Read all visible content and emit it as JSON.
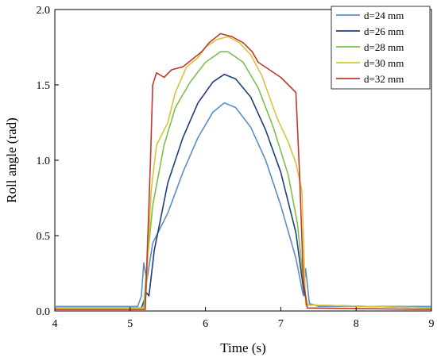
{
  "chart_data": {
    "type": "line",
    "xlabel": "Time (s)",
    "ylabel": "Roll angle (rad)",
    "xlim": [
      4,
      9
    ],
    "ylim": [
      0,
      2.0
    ],
    "x_ticks": [
      "4",
      "5",
      "6",
      "7",
      "8",
      "9"
    ],
    "y_ticks": [
      "0.0",
      "0.5",
      "1.0",
      "1.5",
      "2.0"
    ],
    "legend_position": "top-right",
    "grid": false,
    "series": [
      {
        "name": "d=24 mm",
        "color": "#5b8fc7",
        "points": [
          [
            4.0,
            0.03
          ],
          [
            5.1,
            0.03
          ],
          [
            5.15,
            0.1
          ],
          [
            5.18,
            0.32
          ],
          [
            5.22,
            0.2
          ],
          [
            5.3,
            0.45
          ],
          [
            5.5,
            0.65
          ],
          [
            5.7,
            0.92
          ],
          [
            5.9,
            1.15
          ],
          [
            6.1,
            1.32
          ],
          [
            6.25,
            1.38
          ],
          [
            6.4,
            1.35
          ],
          [
            6.6,
            1.22
          ],
          [
            6.8,
            1.0
          ],
          [
            7.0,
            0.7
          ],
          [
            7.2,
            0.35
          ],
          [
            7.3,
            0.1
          ],
          [
            7.33,
            0.28
          ],
          [
            7.38,
            0.05
          ],
          [
            7.5,
            0.03
          ],
          [
            9.0,
            0.03
          ]
        ]
      },
      {
        "name": "d=26 mm",
        "color": "#1f3e7a",
        "points": [
          [
            4.0,
            0.02
          ],
          [
            5.15,
            0.02
          ],
          [
            5.22,
            0.12
          ],
          [
            5.25,
            0.1
          ],
          [
            5.32,
            0.4
          ],
          [
            5.5,
            0.85
          ],
          [
            5.7,
            1.15
          ],
          [
            5.9,
            1.38
          ],
          [
            6.1,
            1.52
          ],
          [
            6.25,
            1.57
          ],
          [
            6.4,
            1.54
          ],
          [
            6.6,
            1.42
          ],
          [
            6.8,
            1.2
          ],
          [
            7.0,
            0.92
          ],
          [
            7.2,
            0.52
          ],
          [
            7.3,
            0.15
          ],
          [
            7.35,
            0.04
          ],
          [
            9.0,
            0.02
          ]
        ]
      },
      {
        "name": "d=28 mm",
        "color": "#7cc04a",
        "points": [
          [
            4.0,
            0.02
          ],
          [
            5.18,
            0.02
          ],
          [
            5.22,
            0.3
          ],
          [
            5.3,
            0.7
          ],
          [
            5.45,
            1.1
          ],
          [
            5.6,
            1.35
          ],
          [
            5.8,
            1.52
          ],
          [
            6.0,
            1.65
          ],
          [
            6.2,
            1.72
          ],
          [
            6.3,
            1.72
          ],
          [
            6.5,
            1.65
          ],
          [
            6.7,
            1.48
          ],
          [
            6.9,
            1.22
          ],
          [
            7.1,
            0.9
          ],
          [
            7.22,
            0.58
          ],
          [
            7.3,
            0.2
          ],
          [
            7.35,
            0.04
          ],
          [
            9.0,
            0.02
          ]
        ]
      },
      {
        "name": "d=30 mm",
        "color": "#d8c43a",
        "points": [
          [
            4.0,
            0.02
          ],
          [
            5.2,
            0.02
          ],
          [
            5.28,
            0.8
          ],
          [
            5.35,
            1.1
          ],
          [
            5.5,
            1.25
          ],
          [
            5.6,
            1.45
          ],
          [
            5.75,
            1.62
          ],
          [
            5.9,
            1.68
          ],
          [
            6.0,
            1.75
          ],
          [
            6.15,
            1.8
          ],
          [
            6.3,
            1.82
          ],
          [
            6.45,
            1.78
          ],
          [
            6.6,
            1.7
          ],
          [
            6.75,
            1.56
          ],
          [
            6.95,
            1.28
          ],
          [
            7.1,
            1.12
          ],
          [
            7.2,
            0.98
          ],
          [
            7.28,
            0.8
          ],
          [
            7.33,
            0.04
          ],
          [
            9.0,
            0.02
          ]
        ]
      },
      {
        "name": "d=32 mm",
        "color": "#c0392b",
        "points": [
          [
            4.0,
            0.01
          ],
          [
            5.2,
            0.01
          ],
          [
            5.27,
            1.0
          ],
          [
            5.3,
            1.5
          ],
          [
            5.35,
            1.58
          ],
          [
            5.45,
            1.55
          ],
          [
            5.55,
            1.6
          ],
          [
            5.7,
            1.62
          ],
          [
            5.85,
            1.68
          ],
          [
            5.95,
            1.72
          ],
          [
            6.05,
            1.78
          ],
          [
            6.2,
            1.84
          ],
          [
            6.35,
            1.82
          ],
          [
            6.5,
            1.78
          ],
          [
            6.62,
            1.72
          ],
          [
            6.7,
            1.65
          ],
          [
            6.85,
            1.6
          ],
          [
            7.0,
            1.55
          ],
          [
            7.1,
            1.5
          ],
          [
            7.2,
            1.45
          ],
          [
            7.25,
            0.9
          ],
          [
            7.3,
            0.2
          ],
          [
            7.35,
            0.02
          ],
          [
            9.0,
            0.01
          ]
        ]
      }
    ]
  }
}
